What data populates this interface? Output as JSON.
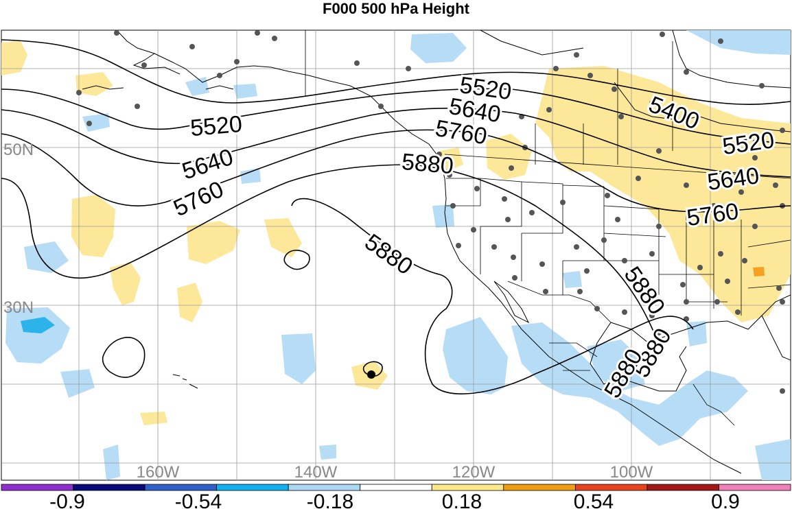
{
  "title": "F000 500 hPa Height",
  "grid_labels": {
    "lat": [
      "50N",
      "30N"
    ],
    "lon": [
      "160W",
      "140W",
      "120W",
      "100W"
    ]
  },
  "contour_labels": [
    "5400",
    "5520",
    "5520",
    "5520",
    "5640",
    "5640",
    "5640",
    "5760",
    "5760",
    "5760",
    "5880",
    "5880",
    "5880",
    "5880",
    "5880"
  ],
  "colorbar": {
    "tick_labels": [
      "-0.9",
      "-0.54",
      "-0.18",
      "0.18",
      "0.54",
      "0.9"
    ],
    "colors": [
      "#8f2fd0",
      "#0a0a7a",
      "#2f5fc8",
      "#12b0f0",
      "#aad8f4",
      "#ffffff",
      "#ffe88a",
      "#f29e12",
      "#e8421e",
      "#a01818",
      "#f080b8"
    ]
  },
  "colors": {
    "positive": "#fde89a",
    "negative": "#b6dcf6",
    "strong_negative": "#2cb4ea",
    "strong_positive": "#f5a020",
    "contour": "#000000",
    "grid": "#9a9a9a",
    "station": "#555555"
  }
}
